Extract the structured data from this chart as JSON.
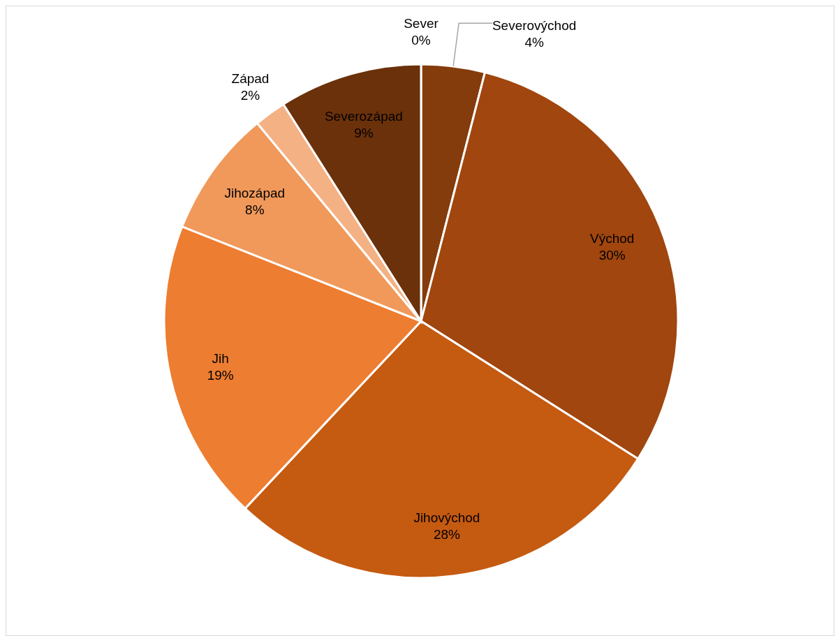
{
  "chart_data": {
    "type": "pie",
    "categories": [
      "Sever",
      "Severovýchod",
      "Východ",
      "Jihovýchod",
      "Jih",
      "Jihozápad",
      "Západ",
      "Severozápad"
    ],
    "values": [
      0,
      4,
      30,
      28,
      19,
      8,
      2,
      9
    ],
    "value_labels": [
      "0%",
      "4%",
      "30%",
      "28%",
      "19%",
      "8%",
      "2%",
      "9%"
    ],
    "colors": [
      "#5a2a0a",
      "#843c0c",
      "#a0460e",
      "#c55a11",
      "#ed7d31",
      "#f0995a",
      "#f4b183",
      "#6b310b"
    ]
  }
}
